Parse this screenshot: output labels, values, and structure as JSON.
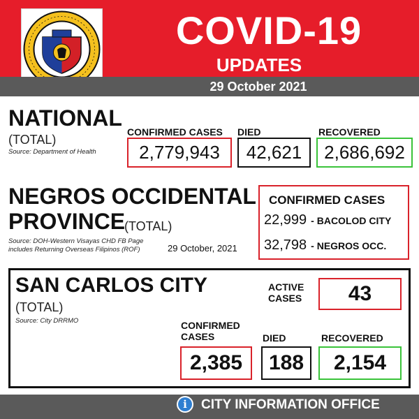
{
  "header": {
    "title": "COVID-19",
    "subtitle": "UPDATES",
    "date": "29 October 2021",
    "logo": {
      "ring_top_text": "CITY OF SAN CARLOS",
      "ring_bottom_text": "PHILIPPINES",
      "icon": "city-seal"
    }
  },
  "national": {
    "title": "NATIONAL",
    "total_label": "(TOTAL)",
    "source": "Source: Department of Health",
    "confirmed_label": "CONFIRMED CASES",
    "confirmed": "2,779,943",
    "died_label": "DIED",
    "died": "42,621",
    "recovered_label": "RECOVERED",
    "recovered": "2,686,692"
  },
  "negros": {
    "title_line1": "NEGROS OCCIDENTAL",
    "title_line2": "PROVINCE",
    "total_label": "(TOTAL)",
    "source_line1": "Source: DOH-Western Visayas CHD FB Page",
    "source_line2": "includes Returning Overseas Filipinos (ROF)",
    "date": "29 October, 2021",
    "confirmed_label": "CONFIRMED CASES",
    "rows": [
      {
        "value": "22,999",
        "label": "- BACOLOD CITY"
      },
      {
        "value": "32,798",
        "label": "- NEGROS OCC."
      }
    ]
  },
  "san_carlos": {
    "title": "SAN CARLOS CITY",
    "total_label": "(TOTAL)",
    "source": "Source: City DRRMO",
    "active_label_line1": "ACTIVE",
    "active_label_line2": "CASES",
    "active": "43",
    "confirmed_label_line1": "CONFIRMED",
    "confirmed_label_line2": "CASES",
    "confirmed": "2,385",
    "died_label": "DIED",
    "died": "188",
    "recovered_label": "RECOVERED",
    "recovered": "2,154"
  },
  "footer": {
    "text": "CITY INFORMATION OFFICE",
    "icon": "info-icon"
  },
  "colors": {
    "brand_red": "#e61d2a",
    "box_red": "#d9222a",
    "box_green": "#3ac33a",
    "bar_gray": "#5a5a5a"
  }
}
